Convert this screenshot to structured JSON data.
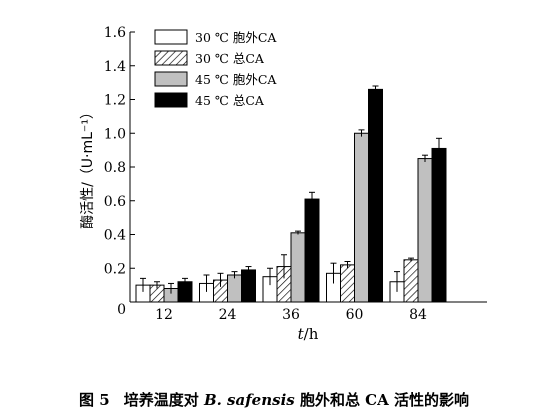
{
  "chart_data": {
    "type": "bar",
    "categories": [
      "12",
      "24",
      "36",
      "60",
      "84"
    ],
    "series": [
      {
        "name": "30 ℃ 胞外CA",
        "fill": "#ffffff",
        "pattern": "none",
        "values": [
          0.1,
          0.11,
          0.15,
          0.17,
          0.12
        ],
        "errors": [
          0.04,
          0.05,
          0.05,
          0.06,
          0.06
        ]
      },
      {
        "name": "30 ℃ 总CA",
        "fill": "#ffffff",
        "pattern": "diagonal-hatch",
        "values": [
          0.1,
          0.13,
          0.21,
          0.22,
          0.25
        ],
        "errors": [
          0.02,
          0.04,
          0.07,
          0.02,
          0.01
        ]
      },
      {
        "name": "45 ℃ 胞外CA",
        "fill": "#c0c0c0",
        "pattern": "none",
        "values": [
          0.08,
          0.16,
          0.41,
          1.0,
          0.85
        ],
        "errors": [
          0.03,
          0.02,
          0.01,
          0.02,
          0.02
        ]
      },
      {
        "name": "45 ℃ 总CA",
        "fill": "#000000",
        "pattern": "none",
        "values": [
          0.12,
          0.19,
          0.61,
          1.26,
          0.91
        ],
        "errors": [
          0.02,
          0.02,
          0.04,
          0.02,
          0.06
        ]
      }
    ],
    "ylim": [
      0,
      1.6
    ],
    "yticks": [
      "0.2",
      "0.4",
      "0.6",
      "0.8",
      "1.0",
      "1.2",
      "1.4",
      "1.6"
    ],
    "y_origin_label": "0",
    "ylabel": "酶活性/（U·mL⁻¹）",
    "xlabel_italic": "t",
    "xlabel_unit": "/h",
    "legend_position": "top-left",
    "grid": false
  },
  "caption": {
    "figure_number": "图 5",
    "text_before": "培养温度对 ",
    "species": "B. safensis",
    "text_after": " 胞外和总 CA 活性的影响"
  }
}
